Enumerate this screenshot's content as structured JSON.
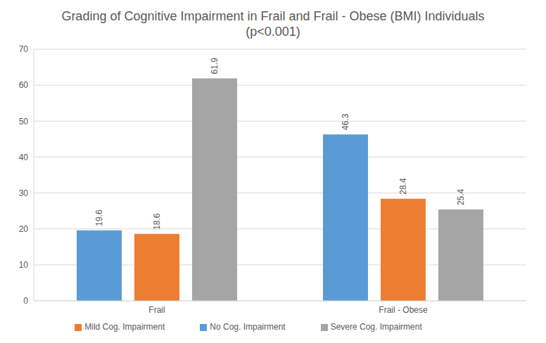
{
  "chart_data": {
    "type": "bar",
    "title": "Grading of Cognitive Impairment in Frail and Frail - Obese (BMI) Individuals",
    "subtitle": "(p<0.001)",
    "categories": [
      "Frail",
      "Frail - Obese"
    ],
    "series": [
      {
        "name": "No Cog. Impairment",
        "color": "#5b9bd5",
        "values": [
          19.6,
          46.3
        ]
      },
      {
        "name": "Mild Cog. Impairment",
        "color": "#ed7d31",
        "values": [
          18.6,
          28.4
        ]
      },
      {
        "name": "Severe Cog. Impairment",
        "color": "#a5a5a5",
        "values": [
          61.9,
          25.4
        ]
      }
    ],
    "ylim": [
      0,
      70
    ],
    "yticks": [
      0,
      10,
      20,
      30,
      40,
      50,
      60,
      70
    ],
    "grid": true,
    "data_labels": true,
    "legend": "bottom"
  }
}
